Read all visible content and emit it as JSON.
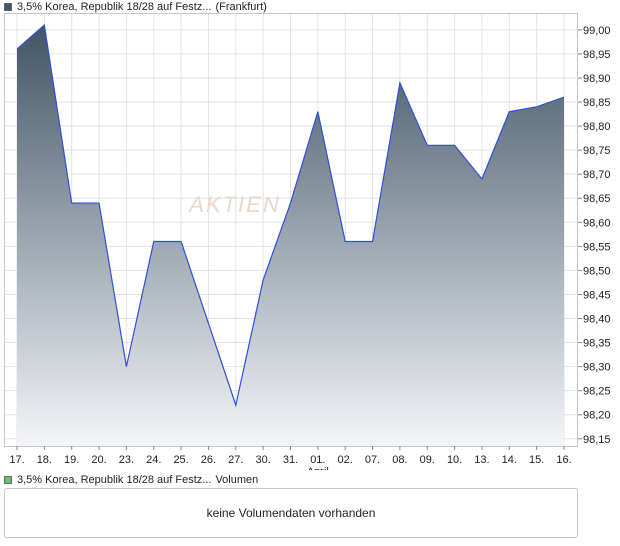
{
  "legend": {
    "price_label": "3,5% Korea, Republik 18/28 auf Festz...",
    "price_exchange": "(Frankfurt)",
    "price_color": "#415566",
    "volume_label": "3,5% Korea, Republik 18/28 auf Festz...",
    "volume_suffix": "Volumen",
    "volume_color": "#6cbf6c"
  },
  "volume_message": "keine Volumendaten vorhanden",
  "watermark": "AKTIEN",
  "chart_data": {
    "type": "area",
    "x": [
      "17.",
      "18.",
      "19.",
      "20.",
      "23.",
      "24.",
      "25.",
      "26.",
      "27.",
      "30.",
      "31.",
      "01.",
      "02.",
      "07.",
      "08.",
      "09.",
      "10.",
      "13.",
      "14.",
      "15.",
      "16."
    ],
    "month_annotations": [
      {
        "x": "01.",
        "label": "April"
      }
    ],
    "series": [
      {
        "values": [
          98.96,
          99.01,
          98.64,
          98.64,
          98.3,
          98.56,
          98.56,
          98.39,
          98.22,
          98.48,
          98.64,
          98.83,
          98.56,
          98.56,
          98.89,
          98.76,
          98.76,
          98.69,
          98.83,
          98.84,
          98.86
        ]
      }
    ],
    "y_ticks": [
      "99,00",
      "98,95",
      "98,90",
      "98,85",
      "98,80",
      "98,75",
      "98,70",
      "98,65",
      "98,60",
      "98,55",
      "98,50",
      "98,45",
      "98,40",
      "98,35",
      "98,30",
      "98,25",
      "98,20",
      "98,15"
    ],
    "ylim": [
      98.135,
      99.035
    ],
    "grid": true,
    "colors": {
      "fill_top": "#415566",
      "fill_bottom": "#f4f5f8",
      "line": "#2f4fd6",
      "grid": "#e2e2e2",
      "frame": "#c8c8c8"
    }
  }
}
